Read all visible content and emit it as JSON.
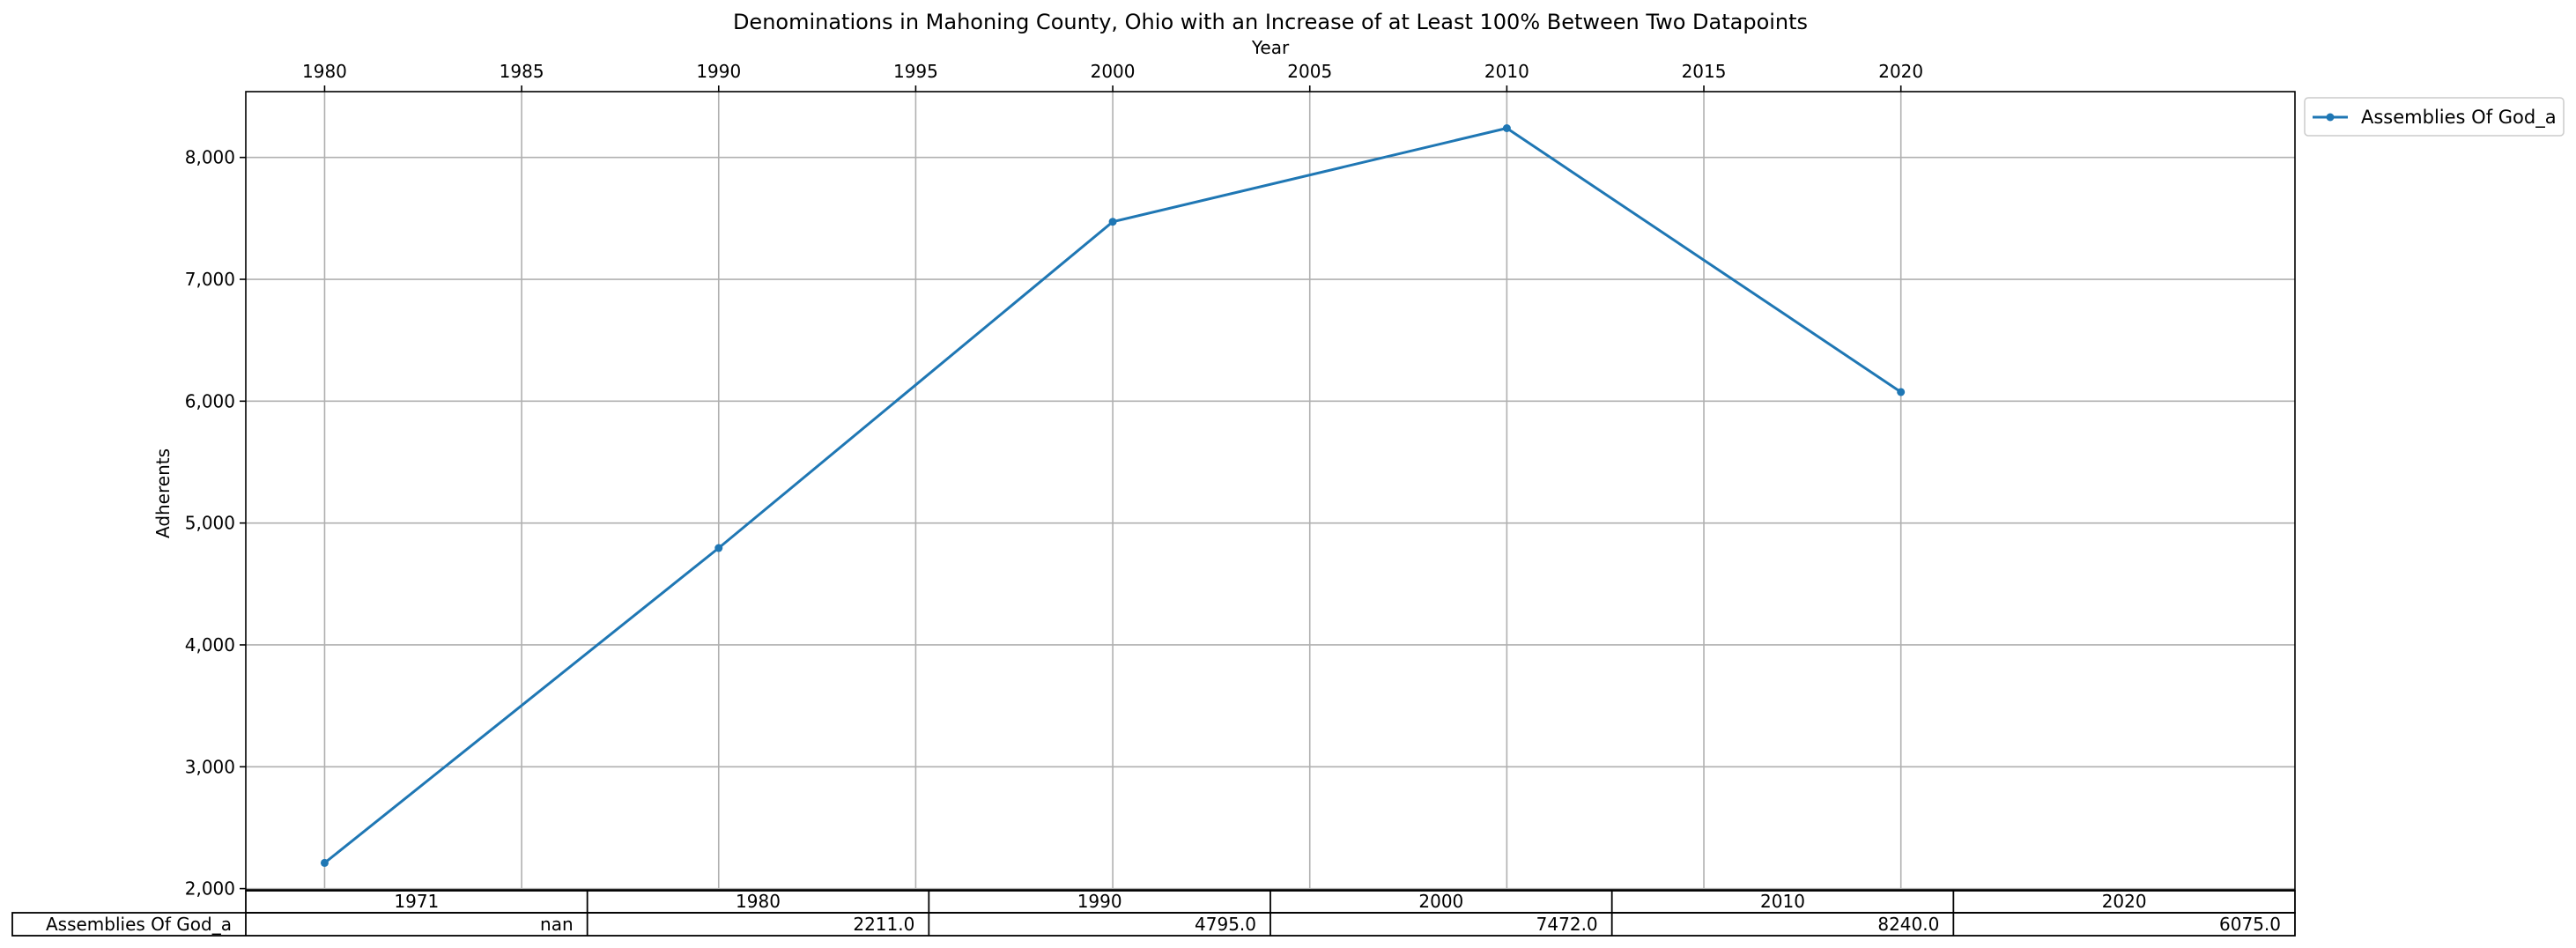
{
  "chart_data": {
    "type": "line",
    "title": "Denominations in Mahoning County, Ohio with an Increase of at Least 100% Between Two Datapoints",
    "xlabel": "Year",
    "ylabel": "Adherents",
    "xlim": [
      1978,
      2030
    ],
    "ylim": [
      1990,
      8540
    ],
    "x_ticks": [
      1980,
      1985,
      1990,
      1995,
      2000,
      2005,
      2010,
      2015,
      2020
    ],
    "y_ticks": [
      2000,
      3000,
      4000,
      5000,
      6000,
      7000,
      8000
    ],
    "y_tick_labels": [
      "2,000",
      "3,000",
      "4,000",
      "5,000",
      "6,000",
      "7,000",
      "8,000"
    ],
    "grid": true,
    "legend_position": "outside-top-right",
    "x_axis_position": "top",
    "series": [
      {
        "name": "Assemblies Of God_a",
        "color": "#1f77b4",
        "marker": "dot",
        "x": [
          1980,
          1990,
          2000,
          2010,
          2020
        ],
        "values": [
          2211,
          4795,
          7472,
          8240,
          6075
        ]
      }
    ],
    "table": {
      "columns": [
        "1971",
        "1980",
        "1990",
        "2000",
        "2010",
        "2020"
      ],
      "rows": [
        {
          "label": "Assemblies Of God_a",
          "cells": [
            "nan",
            "2211.0",
            "4795.0",
            "7472.0",
            "8240.0",
            "6075.0"
          ]
        }
      ]
    }
  }
}
